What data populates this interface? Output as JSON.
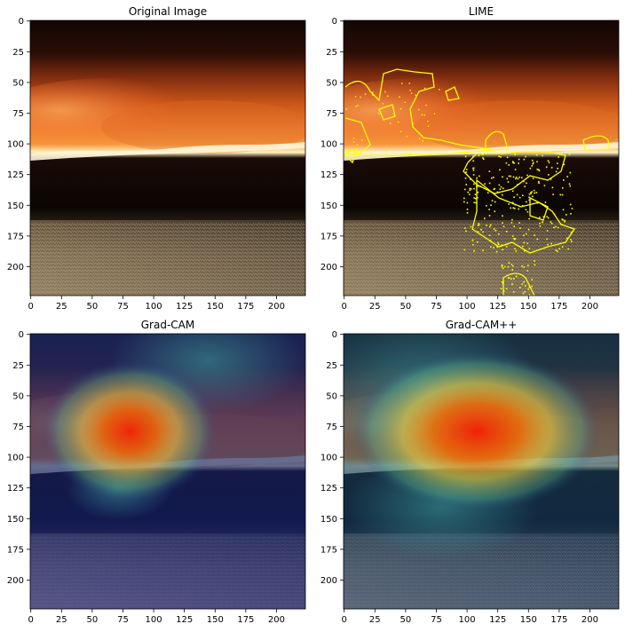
{
  "panels": [
    {
      "title": "Original Image",
      "kind": "original"
    },
    {
      "title": "LIME",
      "kind": "lime"
    },
    {
      "title": "Grad-CAM",
      "kind": "gradcam"
    },
    {
      "title": "Grad-CAM++",
      "kind": "gradcampp"
    }
  ],
  "axes": {
    "x_ticks": [
      "0",
      "25",
      "50",
      "75",
      "100",
      "125",
      "150",
      "175",
      "200"
    ],
    "y_ticks": [
      "0",
      "25",
      "50",
      "75",
      "100",
      "125",
      "150",
      "175",
      "200"
    ],
    "x_values": [
      0,
      25,
      50,
      75,
      100,
      125,
      150,
      175,
      200
    ],
    "y_values": [
      0,
      25,
      50,
      75,
      100,
      125,
      150,
      175,
      200
    ],
    "range": [
      0,
      224
    ]
  },
  "colors": {
    "lime_boundary": "#ffff00",
    "fire_core": "#fff6c8",
    "smoke": "#c8501a"
  }
}
